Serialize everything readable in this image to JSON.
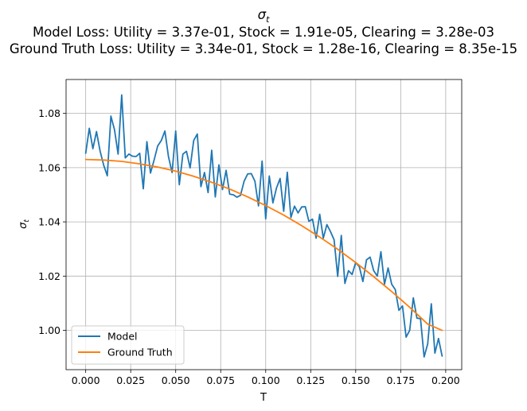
{
  "chart_data": {
    "type": "line",
    "title_main": "σ",
    "title_sub": "t",
    "title_line2": "Model Loss: Utility = 3.37e-01, Stock = 1.91e-05, Clearing = 3.28e-03",
    "title_line3": "Ground Truth Loss: Utility = 3.34e-01, Stock = 1.28e-16, Clearing = 8.35e-15",
    "xlabel": "T",
    "ylabel_main": "σ",
    "ylabel_sub": "t",
    "xlim": [
      -0.0109,
      0.2089
    ],
    "ylim": [
      0.9855,
      1.0925
    ],
    "xticks": [
      0.0,
      0.025,
      0.05,
      0.075,
      0.1,
      0.125,
      0.15,
      0.175,
      0.2
    ],
    "xtick_labels": [
      "0.000",
      "0.025",
      "0.050",
      "0.075",
      "0.100",
      "0.125",
      "0.150",
      "0.175",
      "0.200"
    ],
    "yticks": [
      1.0,
      1.02,
      1.04,
      1.06,
      1.08
    ],
    "ytick_labels": [
      "1.00",
      "1.02",
      "1.04",
      "1.06",
      "1.08"
    ],
    "grid": true,
    "legend_position": "lower-left",
    "series": [
      {
        "name": "Model",
        "color": "#1f77b4",
        "x": [
          0.0,
          0.002,
          0.004,
          0.006,
          0.008,
          0.01,
          0.012,
          0.014,
          0.016,
          0.018,
          0.02,
          0.022,
          0.024,
          0.026,
          0.028,
          0.03,
          0.032,
          0.034,
          0.036,
          0.038,
          0.04,
          0.042,
          0.044,
          0.046,
          0.048,
          0.05,
          0.052,
          0.054,
          0.056,
          0.058,
          0.06,
          0.062,
          0.064,
          0.066,
          0.068,
          0.07,
          0.072,
          0.074,
          0.076,
          0.078,
          0.08,
          0.082,
          0.084,
          0.086,
          0.088,
          0.09,
          0.092,
          0.094,
          0.096,
          0.098,
          0.1,
          0.102,
          0.104,
          0.106,
          0.108,
          0.11,
          0.112,
          0.114,
          0.116,
          0.118,
          0.12,
          0.122,
          0.124,
          0.126,
          0.128,
          0.13,
          0.132,
          0.134,
          0.136,
          0.138,
          0.14,
          0.142,
          0.144,
          0.146,
          0.148,
          0.15,
          0.152,
          0.154,
          0.156,
          0.158,
          0.16,
          0.162,
          0.164,
          0.166,
          0.168,
          0.17,
          0.172,
          0.174,
          0.176,
          0.178,
          0.18,
          0.182,
          0.184,
          0.186,
          0.188,
          0.19,
          0.192,
          0.194,
          0.196,
          0.198
        ],
        "y": [
          1.0653,
          1.0745,
          1.067,
          1.0733,
          1.0661,
          1.0609,
          1.057,
          1.079,
          1.074,
          1.065,
          1.0868,
          1.0636,
          1.065,
          1.0642,
          1.0641,
          1.0653,
          1.0522,
          1.0696,
          1.058,
          1.0628,
          1.068,
          1.07,
          1.0735,
          1.064,
          1.0582,
          1.0735,
          1.0537,
          1.065,
          1.066,
          1.0599,
          1.07,
          1.0724,
          1.053,
          1.0582,
          1.0508,
          1.0664,
          1.0492,
          1.061,
          1.0519,
          1.059,
          1.0502,
          1.05,
          1.0491,
          1.0498,
          1.055,
          1.0577,
          1.0578,
          1.055,
          1.0459,
          1.0624,
          1.0411,
          1.0569,
          1.047,
          1.0525,
          1.056,
          1.0439,
          1.0583,
          1.0416,
          1.0458,
          1.0433,
          1.0455,
          1.0456,
          1.0402,
          1.041,
          1.034,
          1.0428,
          1.034,
          1.039,
          1.0364,
          1.0334,
          1.0199,
          1.035,
          1.0173,
          1.022,
          1.0206,
          1.025,
          1.0235,
          1.018,
          1.026,
          1.027,
          1.022,
          1.02,
          1.029,
          1.017,
          1.023,
          1.017,
          1.015,
          1.0074,
          1.009,
          0.9975,
          1.0,
          1.012,
          1.0045,
          1.0043,
          0.9902,
          0.995,
          1.0098,
          0.9916,
          0.997,
          0.9905
        ]
      },
      {
        "name": "Ground Truth",
        "color": "#ff7f0e",
        "x": [
          0.0,
          0.01,
          0.02,
          0.03,
          0.04,
          0.05,
          0.06,
          0.07,
          0.08,
          0.09,
          0.1,
          0.11,
          0.12,
          0.13,
          0.14,
          0.15,
          0.16,
          0.17,
          0.18,
          0.19,
          0.198
        ],
        "y": [
          1.063,
          1.0628,
          1.0623,
          1.0614,
          1.0602,
          1.0587,
          1.0568,
          1.0546,
          1.0521,
          1.0492,
          1.046,
          1.0425,
          1.0386,
          1.0344,
          1.0299,
          1.025,
          1.0198,
          1.0143,
          1.0085,
          1.0023,
          1.0
        ]
      }
    ]
  }
}
